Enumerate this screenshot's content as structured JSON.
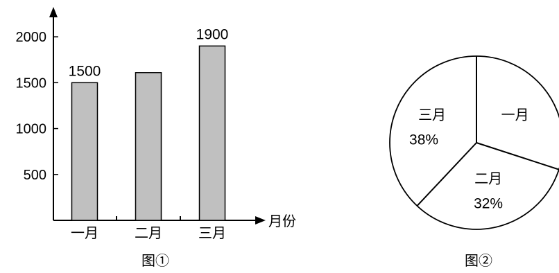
{
  "chart_data": [
    {
      "type": "bar",
      "categories": [
        "一月",
        "二月",
        "三月"
      ],
      "values": [
        1500,
        1610,
        1900
      ],
      "data_labels": [
        "1500",
        "",
        "1900"
      ],
      "yticks": [
        500,
        1000,
        1500,
        2000
      ],
      "ylim": [
        0,
        2250
      ],
      "xlabel": "月份",
      "caption": "图①",
      "bar_color": "#c0c0c0"
    },
    {
      "type": "pie",
      "slices": [
        {
          "label": "一月",
          "value": 30,
          "pct_text": ""
        },
        {
          "label": "二月",
          "value": 32,
          "pct_text": "32%"
        },
        {
          "label": "三月",
          "value": 38,
          "pct_text": "38%"
        }
      ],
      "caption": "图②",
      "fill": "#ffffff"
    }
  ]
}
